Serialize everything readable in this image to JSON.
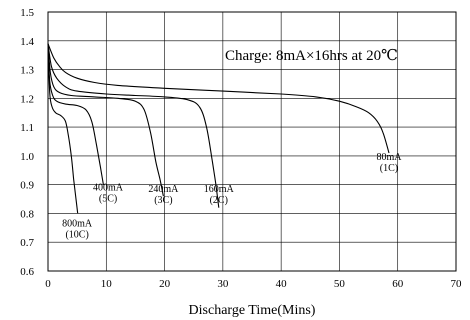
{
  "chart_data": {
    "type": "line",
    "title": "",
    "xlabel": "Discharge Time(Mins)",
    "ylabel": "",
    "xlim": [
      0,
      70
    ],
    "ylim": [
      0.6,
      1.5
    ],
    "xticks": [
      "0",
      "10",
      "20",
      "30",
      "40",
      "50",
      "60",
      "70"
    ],
    "yticks": [
      "0.6",
      "0.7",
      "0.8",
      "0.9",
      "1.0",
      "1.1",
      "1.2",
      "1.3",
      "1.4",
      "1.5"
    ],
    "grid": true,
    "annotation": "Charge: 8mA×16hrs at 20℃",
    "series": [
      {
        "name": "80mA (1C)",
        "label_lines": [
          "80mA",
          "(1C)"
        ],
        "points": [
          [
            0,
            1.39
          ],
          [
            1,
            1.34
          ],
          [
            2,
            1.31
          ],
          [
            3,
            1.29
          ],
          [
            5,
            1.27
          ],
          [
            8,
            1.255
          ],
          [
            12,
            1.245
          ],
          [
            20,
            1.235
          ],
          [
            30,
            1.225
          ],
          [
            40,
            1.215
          ],
          [
            46,
            1.205
          ],
          [
            50,
            1.19
          ],
          [
            53,
            1.17
          ],
          [
            55,
            1.15
          ],
          [
            56.5,
            1.12
          ],
          [
            57.5,
            1.08
          ],
          [
            58.5,
            1.01
          ]
        ]
      },
      {
        "name": "160mA (2C)",
        "label_lines": [
          "160mA",
          "(2C)"
        ],
        "points": [
          [
            0,
            1.39
          ],
          [
            0.6,
            1.31
          ],
          [
            1.5,
            1.27
          ],
          [
            3,
            1.24
          ],
          [
            5,
            1.225
          ],
          [
            10,
            1.215
          ],
          [
            15,
            1.21
          ],
          [
            20,
            1.205
          ],
          [
            24,
            1.195
          ],
          [
            26,
            1.17
          ],
          [
            27.2,
            1.1
          ],
          [
            28.2,
            0.98
          ],
          [
            28.8,
            0.9
          ],
          [
            29.3,
            0.82
          ]
        ]
      },
      {
        "name": "240mA (3C)",
        "label_lines": [
          "240mA",
          "(3C)"
        ],
        "points": [
          [
            0,
            1.39
          ],
          [
            0.4,
            1.29
          ],
          [
            1,
            1.24
          ],
          [
            2,
            1.22
          ],
          [
            4,
            1.21
          ],
          [
            8,
            1.205
          ],
          [
            12,
            1.2
          ],
          [
            15,
            1.19
          ],
          [
            16.5,
            1.16
          ],
          [
            17.6,
            1.08
          ],
          [
            18.5,
            0.98
          ],
          [
            19.2,
            0.92
          ],
          [
            19.8,
            0.86
          ]
        ]
      },
      {
        "name": "400mA (5C)",
        "label_lines": [
          "400mA",
          "(5C)"
        ],
        "points": [
          [
            0,
            1.39
          ],
          [
            0.3,
            1.26
          ],
          [
            0.8,
            1.21
          ],
          [
            1.5,
            1.19
          ],
          [
            3,
            1.18
          ],
          [
            5,
            1.175
          ],
          [
            6.5,
            1.16
          ],
          [
            7.5,
            1.12
          ],
          [
            8.3,
            1.04
          ],
          [
            9,
            0.96
          ],
          [
            9.5,
            0.9
          ]
        ]
      },
      {
        "name": "800mA (10C)",
        "label_lines": [
          "800mA",
          "(10C)"
        ],
        "points": [
          [
            0,
            1.39
          ],
          [
            0.3,
            1.22
          ],
          [
            0.7,
            1.17
          ],
          [
            1.3,
            1.15
          ],
          [
            2.2,
            1.14
          ],
          [
            3,
            1.12
          ],
          [
            3.5,
            1.07
          ],
          [
            4,
            1.0
          ],
          [
            4.4,
            0.92
          ],
          [
            4.8,
            0.85
          ],
          [
            5.1,
            0.8
          ]
        ]
      }
    ]
  }
}
